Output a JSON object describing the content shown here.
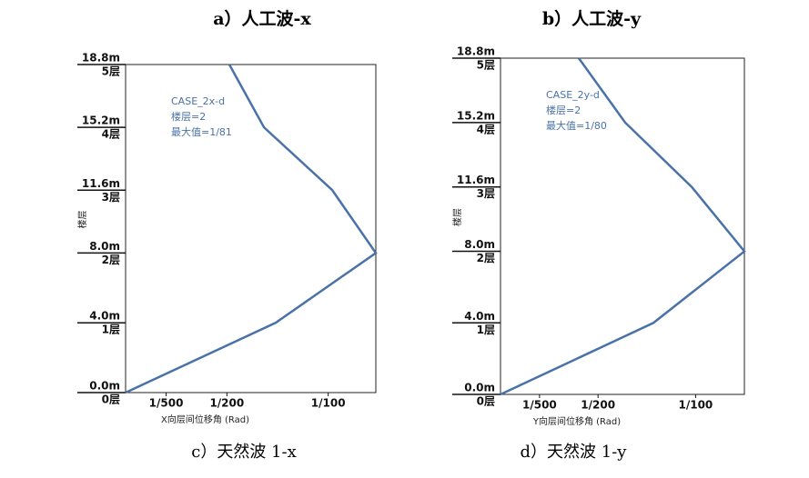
{
  "chart_data": [
    {
      "type": "line",
      "title": "a）人工波-x",
      "caption": "c）天然波 1-x",
      "xlabel": "X向层间位移角 (Rad)",
      "ylabel": "楼层",
      "annotations": [
        "CASE_2x-d",
        "楼层=2",
        "最大值=1/81"
      ],
      "x": [
        0,
        0.00741,
        0.01235,
        0.0102,
        0.00683,
        0.00512
      ],
      "values": [
        0,
        4.0,
        8.0,
        11.6,
        15.2,
        18.8
      ],
      "color": "#4a72a8",
      "xlim": [
        0,
        0.01235
      ],
      "ylim": [
        0,
        18.8
      ],
      "xticks": [
        {
          "value": 0.002,
          "label": "1/500"
        },
        {
          "value": 0.005,
          "label": "1/200"
        },
        {
          "value": 0.01,
          "label": "1/100"
        }
      ],
      "yticks": [
        {
          "value": 0,
          "label": "0.0m"
        },
        {
          "value": 4.0,
          "label": "4.0m"
        },
        {
          "value": 8.0,
          "label": "8.0m"
        },
        {
          "value": 11.6,
          "label": "11.6m"
        },
        {
          "value": 15.2,
          "label": "15.2m"
        },
        {
          "value": 18.8,
          "label": "18.8m"
        }
      ],
      "floor_labels": [
        "0层",
        "1层",
        "2层",
        "3层",
        "4层",
        "5层"
      ]
    },
    {
      "type": "line",
      "title": "b）人工波-y",
      "caption": "d）天然波 1-y",
      "xlabel": "Y向层间位移角 (Rad)",
      "ylabel": "楼层",
      "annotations": [
        "CASE_2y-d",
        "楼层=2",
        "最大值=1/80"
      ],
      "x": [
        0,
        0.00784,
        0.0125,
        0.0098,
        0.00639,
        0.00401
      ],
      "values": [
        0,
        4.0,
        8.0,
        11.6,
        15.2,
        18.8
      ],
      "color": "#4a72a8",
      "xlim": [
        0,
        0.0125
      ],
      "ylim": [
        0,
        18.8
      ],
      "xticks": [
        {
          "value": 0.002,
          "label": "1/500"
        },
        {
          "value": 0.005,
          "label": "1/200"
        },
        {
          "value": 0.01,
          "label": "1/100"
        }
      ],
      "yticks": [
        {
          "value": 0,
          "label": "0.0m"
        },
        {
          "value": 4.0,
          "label": "4.0m"
        },
        {
          "value": 8.0,
          "label": "8.0m"
        },
        {
          "value": 11.6,
          "label": "11.6m"
        },
        {
          "value": 15.2,
          "label": "15.2m"
        },
        {
          "value": 18.8,
          "label": "18.8m"
        }
      ],
      "floor_labels": [
        "0层",
        "1层",
        "2层",
        "3层",
        "4层",
        "5层"
      ]
    }
  ]
}
